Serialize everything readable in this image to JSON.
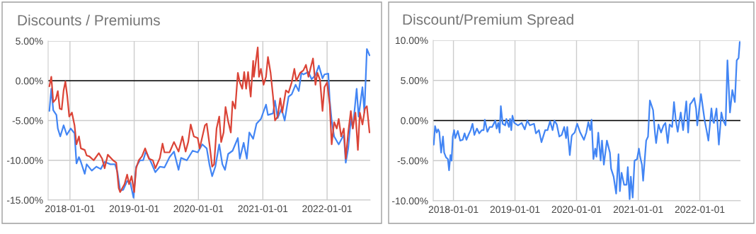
{
  "chart_data": [
    {
      "type": "line",
      "title": "Discounts / Premiums",
      "legend": false,
      "grid": true,
      "xlim": [
        "2017-08-30",
        "2022-09-03"
      ],
      "xticks": [
        "2018-01-01",
        "2019-01-01",
        "2020-01-01",
        "2021-01-01",
        "2022-01-01"
      ],
      "ylim": [
        -15,
        5
      ],
      "yticks": [
        {
          "value": -15,
          "label": "-15.00%"
        },
        {
          "value": -10,
          "label": "-10.00%"
        },
        {
          "value": -5,
          "label": "-5.00%"
        },
        {
          "value": 0,
          "label": "0.00%"
        },
        {
          "value": 5,
          "label": "5.00%"
        }
      ],
      "ref_lines": [
        {
          "axis": "y",
          "value": 0,
          "color": "#000000"
        }
      ],
      "series": [
        {
          "color": "#4285f4",
          "x": [
            "2017-09-06",
            "2017-09-17",
            "2017-09-28",
            "2017-10-16",
            "2017-10-24",
            "2017-11-07",
            "2017-11-26",
            "2017-12-14",
            "2018-01-05",
            "2018-01-27",
            "2018-02-07",
            "2018-02-21",
            "2018-03-04",
            "2018-03-26",
            "2018-04-06",
            "2018-05-05",
            "2018-05-31",
            "2018-06-25",
            "2018-07-17",
            "2018-08-19",
            "2018-09-14",
            "2018-09-28",
            "2018-10-13",
            "2018-10-31",
            "2018-11-22",
            "2018-12-10",
            "2018-12-28",
            "2019-01-12",
            "2019-02-03",
            "2019-02-21",
            "2019-03-08",
            "2019-04-02",
            "2019-05-01",
            "2019-05-27",
            "2019-06-22",
            "2019-07-21",
            "2019-08-15",
            "2019-09-10",
            "2019-09-24",
            "2019-10-27",
            "2019-11-29",
            "2019-12-28",
            "2020-01-23",
            "2020-02-17",
            "2020-03-04",
            "2020-03-19",
            "2020-04-06",
            "2020-04-28",
            "2020-05-16",
            "2020-05-31",
            "2020-06-18",
            "2020-07-13",
            "2020-08-12",
            "2020-08-23",
            "2020-09-14",
            "2020-10-02",
            "2020-10-16",
            "2020-11-07",
            "2020-11-26",
            "2020-12-21",
            "2021-01-19",
            "2021-01-30",
            "2021-02-28",
            "2021-03-11",
            "2021-03-26",
            "2021-04-17",
            "2021-05-05",
            "2021-05-27",
            "2021-06-14",
            "2021-07-06",
            "2021-07-24",
            "2021-08-08",
            "2021-08-19",
            "2021-09-17",
            "2021-10-05",
            "2021-10-27",
            "2021-11-15",
            "2021-12-06",
            "2021-12-17",
            "2022-01-08",
            "2022-01-16",
            "2022-01-27",
            "2022-02-10",
            "2022-03-08",
            "2022-04-06",
            "2022-04-17",
            "2022-05-01",
            "2022-05-16",
            "2022-05-27",
            "2022-06-18",
            "2022-06-29",
            "2022-07-21",
            "2022-08-01",
            "2022-08-15",
            "2022-08-30"
          ],
          "values": [
            -3.8,
            -1.0,
            -3.7,
            -4.3,
            -6.0,
            -7.0,
            -5.6,
            -6.8,
            -6.0,
            -6.6,
            -10.4,
            -9.6,
            -10.2,
            -11.7,
            -10.5,
            -11.3,
            -10.8,
            -11.1,
            -10.2,
            -10.5,
            -10.5,
            -11.5,
            -13.8,
            -13.7,
            -12.6,
            -12.8,
            -14.7,
            -10.8,
            -10.0,
            -10.0,
            -8.9,
            -10.0,
            -11.5,
            -10.8,
            -10.9,
            -9.6,
            -8.9,
            -11.2,
            -9.7,
            -10.0,
            -8.8,
            -9.0,
            -8.0,
            -8.5,
            -10.6,
            -12.0,
            -10.8,
            -8.0,
            -10.5,
            -11.2,
            -9.2,
            -8.8,
            -7.2,
            -9.8,
            -7.8,
            -9.8,
            -6.5,
            -7.3,
            -5.4,
            -4.8,
            -3.0,
            -4.3,
            -4.1,
            -2.5,
            -4.7,
            -3.5,
            -5.0,
            -2.0,
            -1.7,
            -0.5,
            -1.3,
            1.0,
            0.8,
            1.1,
            0.2,
            0.7,
            1.9,
            0.3,
            0.8,
            0.9,
            -2.5,
            -5.0,
            -7.0,
            -8.0,
            -6.8,
            -10.3,
            -8.5,
            -4.8,
            -6.0,
            -1.0,
            -4.5,
            -0.8,
            -4.0,
            4.0,
            3.2
          ]
        },
        {
          "color": "#db4437",
          "x": [
            "2017-09-06",
            "2017-09-17",
            "2017-09-28",
            "2017-10-13",
            "2017-10-24",
            "2017-11-04",
            "2017-11-15",
            "2017-11-26",
            "2017-12-06",
            "2017-12-17",
            "2017-12-28",
            "2018-01-12",
            "2018-01-27",
            "2018-02-07",
            "2018-02-21",
            "2018-03-04",
            "2018-03-26",
            "2018-04-06",
            "2018-04-21",
            "2018-05-16",
            "2018-06-14",
            "2018-07-03",
            "2018-07-17",
            "2018-08-04",
            "2018-09-03",
            "2018-09-21",
            "2018-10-05",
            "2018-10-13",
            "2018-11-07",
            "2018-11-22",
            "2018-12-03",
            "2018-12-17",
            "2019-01-01",
            "2019-01-12",
            "2019-01-27",
            "2019-02-14",
            "2019-03-04",
            "2019-03-26",
            "2019-04-17",
            "2019-05-01",
            "2019-05-27",
            "2019-06-11",
            "2019-06-22",
            "2019-07-21",
            "2019-08-15",
            "2019-09-10",
            "2019-10-02",
            "2019-10-20",
            "2019-11-04",
            "2019-11-18",
            "2019-12-06",
            "2019-12-28",
            "2020-01-08",
            "2020-02-07",
            "2020-02-17",
            "2020-03-04",
            "2020-03-19",
            "2020-03-30",
            "2020-04-13",
            "2020-04-28",
            "2020-05-09",
            "2020-05-23",
            "2020-06-03",
            "2020-06-18",
            "2020-07-03",
            "2020-07-13",
            "2020-07-28",
            "2020-08-12",
            "2020-08-23",
            "2020-09-06",
            "2020-09-17",
            "2020-09-28",
            "2020-10-09",
            "2020-10-24",
            "2020-11-07",
            "2020-11-11",
            "2020-12-03",
            "2020-12-10",
            "2020-12-21",
            "2021-01-05",
            "2021-01-19",
            "2021-01-30",
            "2021-02-14",
            "2021-02-28",
            "2021-03-11",
            "2021-03-26",
            "2021-04-10",
            "2021-04-21",
            "2021-05-12",
            "2021-05-27",
            "2021-06-14",
            "2021-06-29",
            "2021-07-10",
            "2021-08-01",
            "2021-08-19",
            "2021-09-03",
            "2021-09-17",
            "2021-09-28",
            "2021-10-13",
            "2021-10-27",
            "2021-11-07",
            "2021-11-22",
            "2021-12-06",
            "2021-12-17",
            "2022-01-01",
            "2022-01-16",
            "2022-01-27",
            "2022-02-10",
            "2022-02-25",
            "2022-03-08",
            "2022-03-22",
            "2022-04-06",
            "2022-04-17",
            "2022-05-01",
            "2022-05-16",
            "2022-05-27",
            "2022-06-11",
            "2022-06-25",
            "2022-07-06",
            "2022-07-21",
            "2022-08-04",
            "2022-08-15",
            "2022-08-30"
          ],
          "values": [
            -0.7,
            0.5,
            -2.7,
            -2.3,
            -1.3,
            -3.5,
            -3.6,
            -1.2,
            -0.1,
            -2.0,
            -4.5,
            -4.0,
            -5.6,
            -8.0,
            -7.0,
            -8.5,
            -8.7,
            -9.4,
            -9.5,
            -10.0,
            -9.1,
            -9.8,
            -11.0,
            -9.3,
            -10.0,
            -10.3,
            -13.5,
            -14.0,
            -13.0,
            -11.8,
            -13.0,
            -12.0,
            -14.0,
            -11.0,
            -10.0,
            -9.5,
            -8.5,
            -9.8,
            -10.0,
            -11.0,
            -9.7,
            -7.9,
            -9.0,
            -9.0,
            -7.7,
            -8.9,
            -7.0,
            -8.9,
            -7.7,
            -5.5,
            -7.0,
            -7.2,
            -8.5,
            -5.6,
            -5.4,
            -8.0,
            -10.8,
            -10.5,
            -6.0,
            -4.5,
            -7.7,
            -6.5,
            -3.3,
            -5.1,
            -6.5,
            -2.6,
            -3.5,
            1.0,
            -0.2,
            -1.0,
            1.1,
            -1.0,
            1.1,
            -2.0,
            2.5,
            0.5,
            4.2,
            0.5,
            1.5,
            -0.5,
            0.5,
            3.0,
            1.0,
            -2.0,
            -5.0,
            -4.5,
            -2.2,
            -4.0,
            -1.2,
            -1.5,
            -0.2,
            1.5,
            0.0,
            1.0,
            1.3,
            2.0,
            0.5,
            1.5,
            2.8,
            -0.5,
            1.0,
            0.1,
            -3.8,
            -0.8,
            -0.2,
            -3.0,
            -8.0,
            -5.2,
            -6.0,
            -4.8,
            -7.0,
            -6.0,
            -9.8,
            -6.5,
            -3.8,
            -6.0,
            -4.0,
            -8.7,
            -4.0,
            -5.5,
            -3.5,
            -3.2,
            -6.5
          ]
        }
      ]
    },
    {
      "type": "line",
      "title": "Discount/Premium Spread",
      "legend": false,
      "grid": true,
      "xlim": [
        "2017-09-03",
        "2022-08-30"
      ],
      "xticks": [
        "2018-01-01",
        "2019-01-01",
        "2020-01-01",
        "2021-01-01",
        "2022-01-01"
      ],
      "ylim": [
        -10,
        10
      ],
      "yticks": [
        {
          "value": -10,
          "label": "-10.00%"
        },
        {
          "value": -5,
          "label": "-5.00%"
        },
        {
          "value": 0,
          "label": "0.00%"
        },
        {
          "value": 5,
          "label": "5.00%"
        },
        {
          "value": 10,
          "label": "10.00%"
        }
      ],
      "ref_lines": [
        {
          "axis": "y",
          "value": 0,
          "color": "#000000"
        }
      ],
      "series": [
        {
          "color": "#4285f4",
          "x": [
            "2017-09-06",
            "2017-09-14",
            "2017-09-24",
            "2017-10-02",
            "2017-10-09",
            "2017-10-20",
            "2017-10-31",
            "2017-11-07",
            "2017-11-18",
            "2017-11-29",
            "2017-12-06",
            "2017-12-14",
            "2017-12-21",
            "2017-12-28",
            "2018-01-05",
            "2018-01-12",
            "2018-01-27",
            "2018-02-10",
            "2018-02-25",
            "2018-03-08",
            "2018-03-19",
            "2018-04-02",
            "2018-04-13",
            "2018-04-24",
            "2018-05-05",
            "2018-05-20",
            "2018-06-03",
            "2018-06-18",
            "2018-06-29",
            "2018-07-06",
            "2018-07-21",
            "2018-08-04",
            "2018-08-19",
            "2018-09-06",
            "2018-09-14",
            "2018-09-24",
            "2018-10-02",
            "2018-10-09",
            "2018-10-20",
            "2018-11-04",
            "2018-11-11",
            "2018-11-26",
            "2018-12-03",
            "2018-12-10",
            "2018-12-17",
            "2018-12-28",
            "2019-01-19",
            "2019-02-10",
            "2019-02-28",
            "2019-03-15",
            "2019-03-30",
            "2019-04-24",
            "2019-05-05",
            "2019-05-23",
            "2019-06-07",
            "2019-06-29",
            "2019-07-13",
            "2019-07-28",
            "2019-08-12",
            "2019-08-23",
            "2019-09-06",
            "2019-09-21",
            "2019-10-05",
            "2019-10-20",
            "2019-10-31",
            "2019-11-07",
            "2019-11-22",
            "2019-12-03",
            "2019-12-06",
            "2019-12-21",
            "2020-01-05",
            "2020-01-23",
            "2020-02-14",
            "2020-02-28",
            "2020-03-11",
            "2020-03-22",
            "2020-03-30",
            "2020-04-10",
            "2020-04-21",
            "2020-04-28",
            "2020-05-09",
            "2020-05-23",
            "2020-05-31",
            "2020-06-11",
            "2020-06-29",
            "2020-07-17",
            "2020-07-24",
            "2020-08-08",
            "2020-08-23",
            "2020-09-06",
            "2020-09-14",
            "2020-09-24",
            "2020-10-09",
            "2020-10-24",
            "2020-10-31",
            "2020-11-11",
            "2020-11-18",
            "2020-11-29",
            "2020-12-10",
            "2020-12-25",
            "2021-01-05",
            "2021-01-12",
            "2021-01-23",
            "2021-01-30",
            "2021-02-17",
            "2021-02-28",
            "2021-03-11",
            "2021-03-30",
            "2021-04-10",
            "2021-04-17",
            "2021-05-01",
            "2021-05-16",
            "2021-05-31",
            "2021-06-11",
            "2021-06-25",
            "2021-07-06",
            "2021-07-21",
            "2021-08-01",
            "2021-08-12",
            "2021-08-23",
            "2021-09-10",
            "2021-09-24",
            "2021-10-13",
            "2021-10-24",
            "2021-11-04",
            "2021-11-15",
            "2021-11-29",
            "2021-12-10",
            "2021-12-17",
            "2022-01-08",
            "2022-01-30",
            "2022-02-10",
            "2022-02-21",
            "2022-03-11",
            "2022-03-19",
            "2022-03-26",
            "2022-04-10",
            "2022-04-24",
            "2022-05-09",
            "2022-05-20",
            "2022-06-03",
            "2022-06-14",
            "2022-06-29",
            "2022-07-13",
            "2022-07-28",
            "2022-08-08",
            "2022-08-19",
            "2022-08-26"
          ],
          "values": [
            -3.0,
            -0.7,
            -1.5,
            -1.1,
            -1.4,
            -4.0,
            -2.0,
            -4.0,
            -4.6,
            -4.8,
            -6.2,
            -4.3,
            -5.0,
            -2.0,
            -1.2,
            -2.2,
            -1.3,
            -2.5,
            -2.4,
            -1.6,
            -2.4,
            -1.7,
            -1.2,
            -0.4,
            -1.8,
            -1.0,
            -1.6,
            -1.2,
            -1.2,
            0.1,
            -1.4,
            -0.8,
            -0.8,
            0.0,
            -1.0,
            -0.3,
            -1.5,
            1.8,
            -0.4,
            -0.6,
            0.2,
            -0.8,
            0.2,
            -1.2,
            0.6,
            -0.3,
            -0.6,
            -0.3,
            -1.1,
            0.0,
            -0.6,
            -0.4,
            -1.6,
            -1.2,
            -2.7,
            -1.2,
            -1.2,
            -0.1,
            -1.2,
            0.0,
            -0.5,
            -2.0,
            -1.8,
            -0.8,
            -2.2,
            -0.8,
            -4.3,
            -2.0,
            -1.8,
            -1.5,
            -0.4,
            -1.5,
            -2.4,
            -1.5,
            -0.2,
            -1.2,
            0.1,
            -4.8,
            -3.5,
            -4.5,
            -1.5,
            -5.0,
            -2.5,
            -5.5,
            -2.5,
            -4.0,
            -6.0,
            -7.0,
            -9.1,
            -4.2,
            -8.8,
            -6.5,
            -8.0,
            -8.0,
            -5.8,
            -9.8,
            -7.0,
            -9.6,
            -5.0,
            -4.8,
            -3.5,
            -4.5,
            -5.5,
            -7.5,
            -2.5,
            -2.0,
            2.5,
            1.3,
            -1.5,
            -2.8,
            -0.5,
            -1.5,
            -0.6,
            -0.3,
            -2.8,
            -0.5,
            -0.8,
            2.3,
            0.0,
            -1.4,
            1.0,
            -1.2,
            2.4,
            -1.5,
            2.0,
            2.3,
            2.8,
            1.5,
            -0.6,
            3.3,
            0.0,
            -1.2,
            -2.5,
            1.5,
            0.0,
            -0.3,
            1.5,
            -3.0,
            1.0,
            0.0,
            -0.6,
            7.5,
            1.0,
            3.8,
            2.3,
            7.5,
            7.8,
            9.8
          ]
        }
      ]
    }
  ]
}
